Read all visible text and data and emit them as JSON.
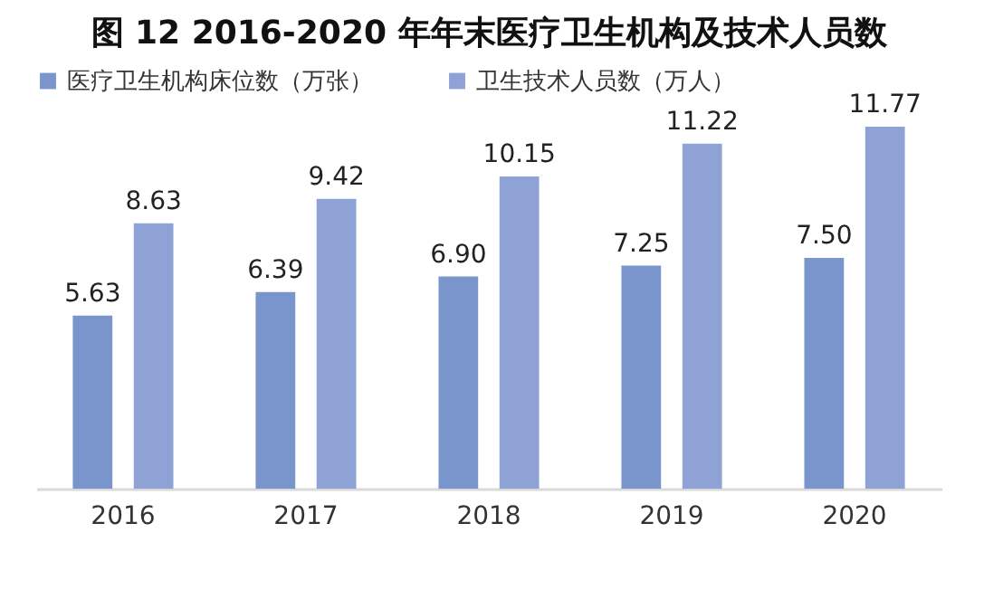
{
  "chart_data": {
    "type": "bar",
    "title": "图 12 2016-2020 年年末医疗卫生机构及技术人员数",
    "categories": [
      "2016",
      "2017",
      "2018",
      "2019",
      "2020"
    ],
    "series": [
      {
        "name": "医疗卫生机构床位数（万张）",
        "color": "#7a95cc",
        "values": [
          5.63,
          6.39,
          6.9,
          7.25,
          7.5
        ],
        "value_labels": [
          "5.63",
          "6.39",
          "6.90",
          "7.25",
          "7.50"
        ]
      },
      {
        "name": "卫生技术人员数（万人）",
        "color": "#8ea2d5",
        "values": [
          8.63,
          9.42,
          10.15,
          11.22,
          11.77
        ],
        "value_labels": [
          "8.63",
          "9.42",
          "10.15",
          "11.22",
          "11.77"
        ]
      }
    ],
    "legend": "top",
    "grid": false
  }
}
